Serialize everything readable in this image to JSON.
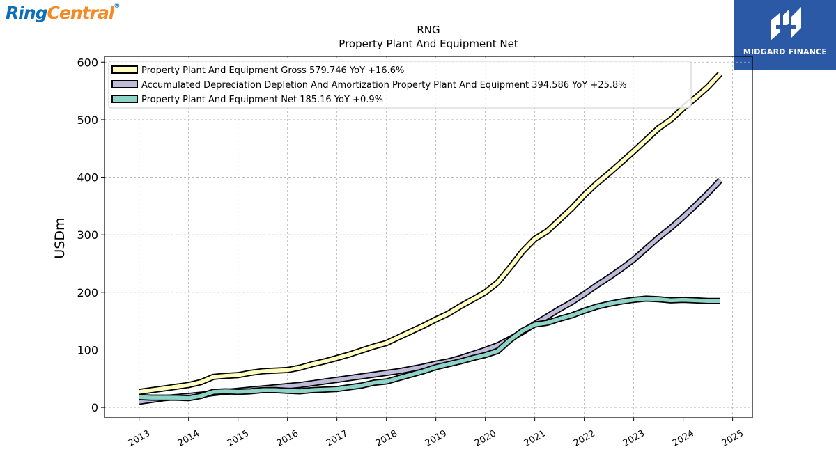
{
  "branding": {
    "left_logo_part1": "Ring",
    "left_logo_part2": "Central",
    "left_logo_mark": "®",
    "right_logo_text": "MIDGARD FINANCE",
    "right_logo_bg": "#2c59a6"
  },
  "chart_data": {
    "type": "line",
    "title": "RNG",
    "subtitle": "Property Plant And Equipment Net",
    "xlabel": "",
    "ylabel": "USDm",
    "xlim": [
      2012.3,
      2025.4
    ],
    "ylim": [
      -18,
      610
    ],
    "yticks": [
      0,
      100,
      200,
      300,
      400,
      500,
      600
    ],
    "xticks": [
      2013,
      2014,
      2015,
      2016,
      2017,
      2018,
      2019,
      2020,
      2021,
      2022,
      2023,
      2024,
      2025
    ],
    "grid": true,
    "legend_position": "top-left",
    "series": [
      {
        "name": "Property Plant And Equipment Gross",
        "legend": "Property Plant And Equipment Gross  579.746 YoY +16.6%",
        "color": "#ffffbf",
        "x": [
          2013.0,
          2013.25,
          2013.5,
          2013.75,
          2014.0,
          2014.25,
          2014.5,
          2014.75,
          2015.0,
          2015.25,
          2015.5,
          2015.75,
          2016.0,
          2016.25,
          2016.5,
          2016.75,
          2017.0,
          2017.25,
          2017.5,
          2017.75,
          2018.0,
          2018.25,
          2018.5,
          2018.75,
          2019.0,
          2019.25,
          2019.5,
          2019.75,
          2020.0,
          2020.25,
          2020.5,
          2020.75,
          2021.0,
          2021.25,
          2021.5,
          2021.75,
          2022.0,
          2022.25,
          2022.5,
          2022.75,
          2023.0,
          2023.25,
          2023.5,
          2023.75,
          2024.0,
          2024.25,
          2024.5,
          2024.75
        ],
        "values": [
          27,
          30,
          33,
          36,
          39,
          44,
          53,
          55,
          56,
          60,
          63,
          64,
          65,
          69,
          75,
          80,
          86,
          92,
          99,
          106,
          112,
          122,
          132,
          142,
          153,
          163,
          176,
          188,
          200,
          217,
          243,
          271,
          293,
          306,
          326,
          346,
          369,
          389,
          407,
          426,
          445,
          465,
          485,
          500,
          520,
          538,
          557,
          580
        ]
      },
      {
        "name": "Accumulated Depreciation Depletion And Amortization Property Plant And Equipment",
        "legend": "Accumulated Depreciation Depletion And Amortization Property Plant And Equipment  394.586 YoY +25.8%",
        "color": "#bebada",
        "x": [
          2013.0,
          2013.25,
          2013.5,
          2013.75,
          2014.0,
          2014.25,
          2014.5,
          2014.75,
          2015.0,
          2015.25,
          2015.5,
          2015.75,
          2016.0,
          2016.25,
          2016.5,
          2016.75,
          2017.0,
          2017.25,
          2017.5,
          2017.75,
          2018.0,
          2018.25,
          2018.5,
          2018.75,
          2019.0,
          2019.25,
          2019.5,
          2019.75,
          2020.0,
          2020.25,
          2020.5,
          2020.75,
          2021.0,
          2021.25,
          2021.5,
          2021.75,
          2022.0,
          2022.25,
          2022.5,
          2022.75,
          2023.0,
          2023.25,
          2023.5,
          2023.75,
          2024.0,
          2024.25,
          2024.5,
          2024.75
        ],
        "values": [
          10,
          13,
          16,
          18,
          20,
          22,
          25,
          27,
          29,
          31,
          33,
          35,
          37,
          39,
          42,
          45,
          48,
          51,
          54,
          57,
          60,
          63,
          67,
          71,
          76,
          80,
          86,
          93,
          100,
          108,
          119,
          131,
          145,
          158,
          171,
          183,
          197,
          212,
          226,
          241,
          257,
          276,
          295,
          312,
          331,
          351,
          372,
          395
        ]
      },
      {
        "name": "Property Plant And Equipment Net",
        "legend": "Property Plant And Equipment Net  185.16 YoY +0.9%",
        "color": "#8dd3c7",
        "x": [
          2013.0,
          2013.25,
          2013.5,
          2013.75,
          2014.0,
          2014.25,
          2014.5,
          2014.75,
          2015.0,
          2015.25,
          2015.5,
          2015.75,
          2016.0,
          2016.25,
          2016.5,
          2016.75,
          2017.0,
          2017.25,
          2017.5,
          2017.75,
          2018.0,
          2018.25,
          2018.5,
          2018.75,
          2019.0,
          2019.25,
          2019.5,
          2019.75,
          2020.0,
          2020.25,
          2020.5,
          2020.75,
          2021.0,
          2021.25,
          2021.5,
          2021.75,
          2022.0,
          2022.25,
          2022.5,
          2022.75,
          2023.0,
          2023.25,
          2023.5,
          2023.75,
          2024.0,
          2024.25,
          2024.5,
          2024.75
        ],
        "values": [
          18,
          17,
          17,
          17,
          16,
          20,
          27,
          28,
          27,
          28,
          30,
          30,
          29,
          28,
          30,
          31,
          32,
          35,
          38,
          43,
          45,
          51,
          57,
          63,
          70,
          75,
          80,
          86,
          91,
          98,
          117,
          133,
          144,
          147,
          154,
          160,
          168,
          175,
          180,
          184,
          187,
          189,
          188,
          186,
          187,
          186,
          185,
          185
        ]
      }
    ]
  }
}
